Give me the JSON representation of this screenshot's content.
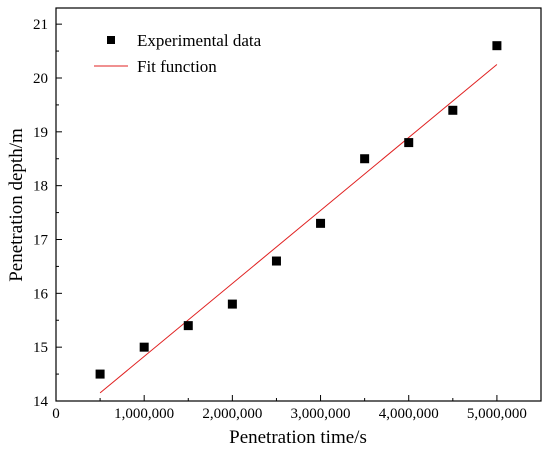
{
  "chart_data": {
    "type": "scatter",
    "title": "",
    "xlabel": "Penetration time/s",
    "ylabel": "Penetration depth/m",
    "xlim": [
      0,
      5500000
    ],
    "ylim": [
      14,
      21.3
    ],
    "x_ticks": [
      0,
      1000000,
      2000000,
      3000000,
      4000000,
      5000000
    ],
    "x_tick_labels": [
      "0",
      "1,000,000",
      "2,000,000",
      "3,000,000",
      "4,000,000",
      "5,000,000"
    ],
    "y_ticks": [
      14,
      15,
      16,
      17,
      18,
      19,
      20,
      21
    ],
    "y_tick_labels": [
      "14",
      "15",
      "16",
      "17",
      "18",
      "19",
      "20",
      "21"
    ],
    "legend_position": "top-left",
    "series": [
      {
        "name": "Experimental data",
        "kind": "scatter",
        "marker": "square",
        "color": "#000000",
        "x": [
          500000,
          1000000,
          1500000,
          2000000,
          2500000,
          3000000,
          3500000,
          4000000,
          4500000,
          5000000
        ],
        "y": [
          14.5,
          15.0,
          15.4,
          15.8,
          16.6,
          17.3,
          18.5,
          18.8,
          19.4,
          20.6
        ]
      },
      {
        "name": "Fit function",
        "kind": "line",
        "color": "#e02020",
        "x": [
          500000,
          5000000
        ],
        "y": [
          14.15,
          20.25
        ]
      }
    ]
  }
}
